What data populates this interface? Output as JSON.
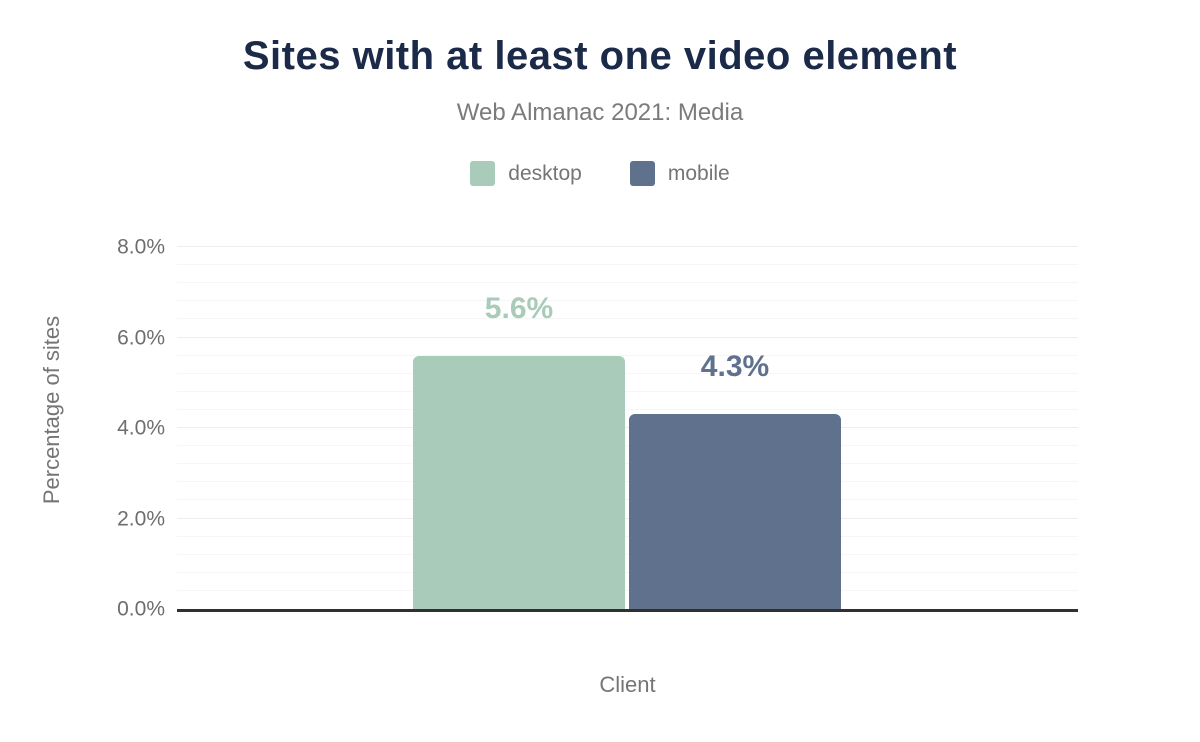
{
  "chart_data": {
    "type": "bar",
    "title": "Sites with at least one video element",
    "subtitle": "Web Almanac 2021: Media",
    "xlabel": "Client",
    "ylabel": "Percentage of sites",
    "categories": [
      "Client"
    ],
    "series": [
      {
        "name": "desktop",
        "values": [
          5.6
        ],
        "label": "5.6%",
        "color": "#a8cbba"
      },
      {
        "name": "mobile",
        "values": [
          4.3
        ],
        "label": "4.3%",
        "color": "#5f718c"
      }
    ],
    "ylim": [
      0,
      8
    ],
    "y_ticks": [
      {
        "value": 0,
        "label": "0.0%"
      },
      {
        "value": 2,
        "label": "2.0%"
      },
      {
        "value": 4,
        "label": "4.0%"
      },
      {
        "value": 6,
        "label": "6.0%"
      },
      {
        "value": 8,
        "label": "8.0%"
      }
    ],
    "minor_grid_step": 0.4,
    "grid": true,
    "legend_position": "top"
  },
  "colors": {
    "title": "#1b2a49",
    "subtitle": "#7b7b7b",
    "axis_text": "#757575",
    "tick_text": "#6e6e6e",
    "major_grid": "#ededed",
    "minor_grid": "#f6f6f6",
    "baseline": "#303030",
    "background": "#ffffff",
    "desktop_bar": "#a8cbba",
    "mobile_bar": "#5f718c"
  }
}
